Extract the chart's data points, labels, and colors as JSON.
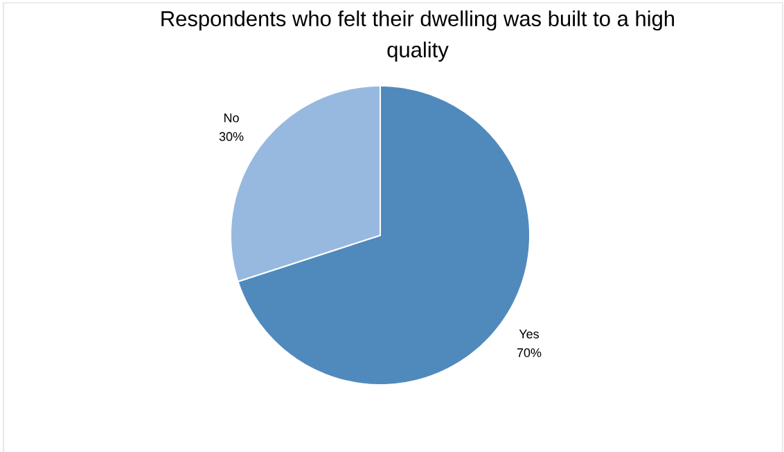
{
  "chart_data": {
    "type": "pie",
    "title": "Respondents who felt their dwelling was built to a high quality",
    "categories": [
      "Yes",
      "No"
    ],
    "values": [
      70,
      30
    ],
    "colors": [
      "#508abd",
      "#97b9e0"
    ],
    "value_labels": [
      "70%",
      "30%"
    ]
  }
}
